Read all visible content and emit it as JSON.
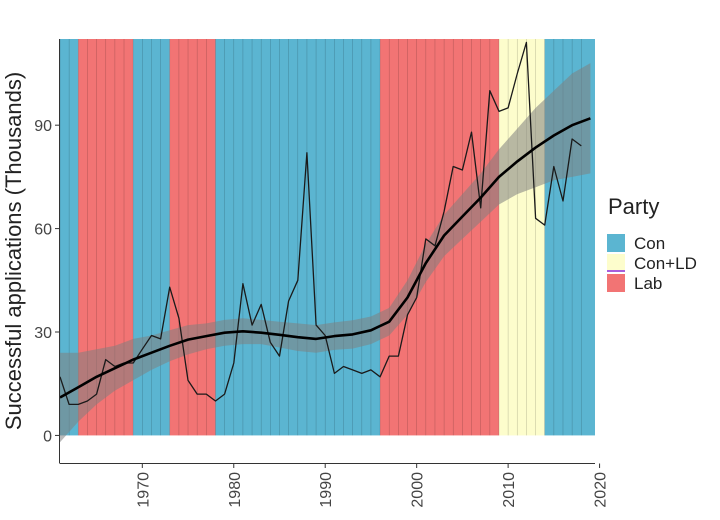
{
  "chart_data": {
    "type": "line",
    "title": "",
    "xlabel": "",
    "ylabel": "Successful applications (Thousands)",
    "xlim": [
      1961,
      2019.5
    ],
    "ylim": [
      -8,
      115
    ],
    "x_ticks": [
      1970,
      1980,
      1990,
      2000,
      2010,
      2020
    ],
    "y_ticks": [
      0,
      30,
      60,
      90
    ],
    "grid": false,
    "legend": {
      "title": "Party",
      "position": "right",
      "entries": [
        {
          "label": "Con",
          "color": "#5bb5d1"
        },
        {
          "label": "Con+LD",
          "color": "#fdfdcc"
        },
        {
          "label": "Lab",
          "color": "#f27474"
        }
      ]
    },
    "party_periods": [
      {
        "party": "Con",
        "start": 1961,
        "end": 1963
      },
      {
        "party": "Lab",
        "start": 1963,
        "end": 1969
      },
      {
        "party": "Con",
        "start": 1969,
        "end": 1973
      },
      {
        "party": "Lab",
        "start": 1973,
        "end": 1978
      },
      {
        "party": "Con",
        "start": 1978,
        "end": 1996
      },
      {
        "party": "Lab",
        "start": 1996,
        "end": 2009
      },
      {
        "party": "Con+LD",
        "start": 2009,
        "end": 2014
      },
      {
        "party": "Con",
        "start": 2014,
        "end": 2019.5
      }
    ],
    "series": [
      {
        "name": "Successful applications",
        "x": [
          1961,
          1962,
          1963,
          1964,
          1965,
          1966,
          1967,
          1968,
          1969,
          1970,
          1971,
          1972,
          1973,
          1974,
          1975,
          1976,
          1977,
          1978,
          1979,
          1980,
          1981,
          1982,
          1983,
          1984,
          1985,
          1986,
          1987,
          1988,
          1989,
          1990,
          1991,
          1992,
          1993,
          1994,
          1995,
          1996,
          1997,
          1998,
          1999,
          2000,
          2001,
          2002,
          2003,
          2004,
          2005,
          2006,
          2007,
          2008,
          2009,
          2010,
          2011,
          2012,
          2013,
          2014,
          2015,
          2016,
          2017,
          2018,
          2019
        ],
        "values": [
          17,
          9,
          9,
          10,
          12,
          22,
          20,
          21,
          21,
          25,
          29,
          28,
          43,
          34,
          16,
          12,
          12,
          10,
          12,
          21,
          44,
          32,
          38,
          27,
          23,
          39,
          45,
          82,
          32,
          29,
          18,
          20,
          19,
          18,
          19,
          17,
          23,
          23,
          35,
          40,
          57,
          55,
          65,
          78,
          77,
          88,
          66,
          100,
          94,
          95,
          105,
          114,
          63,
          61,
          78,
          68,
          86,
          84,
          null
        ],
        "color": "#1a1a1a"
      },
      {
        "name": "Smoothed trend",
        "x": [
          1961,
          1963,
          1965,
          1967,
          1969,
          1971,
          1973,
          1975,
          1977,
          1979,
          1981,
          1983,
          1985,
          1987,
          1989,
          1991,
          1993,
          1995,
          1997,
          1999,
          2001,
          2003,
          2005,
          2007,
          2009,
          2011,
          2013,
          2015,
          2017,
          2019
        ],
        "values": [
          11,
          14,
          17,
          19.5,
          22,
          24,
          26,
          27.8,
          28.8,
          29.8,
          30.2,
          29.8,
          29.2,
          28.5,
          28,
          28.8,
          29.3,
          30.5,
          33,
          40,
          50,
          58,
          63.5,
          69,
          75,
          79.5,
          83.5,
          87,
          90,
          92
        ],
        "lower": [
          -2,
          4,
          9,
          13,
          16,
          19,
          21.5,
          23.5,
          25,
          26,
          26.5,
          26.5,
          25.5,
          24.5,
          24,
          24.8,
          25.2,
          26.5,
          29,
          35,
          44.5,
          52,
          57,
          62,
          67,
          70,
          72,
          74,
          75,
          76
        ],
        "upper": [
          24,
          24,
          25,
          26,
          28,
          29,
          30.5,
          32,
          32.5,
          33.5,
          34,
          33.5,
          33,
          32.5,
          32,
          32.8,
          33.4,
          34.5,
          37,
          45,
          55.5,
          64,
          70,
          76,
          83,
          89,
          95,
          100,
          105,
          108
        ],
        "color": "#000000"
      }
    ]
  }
}
